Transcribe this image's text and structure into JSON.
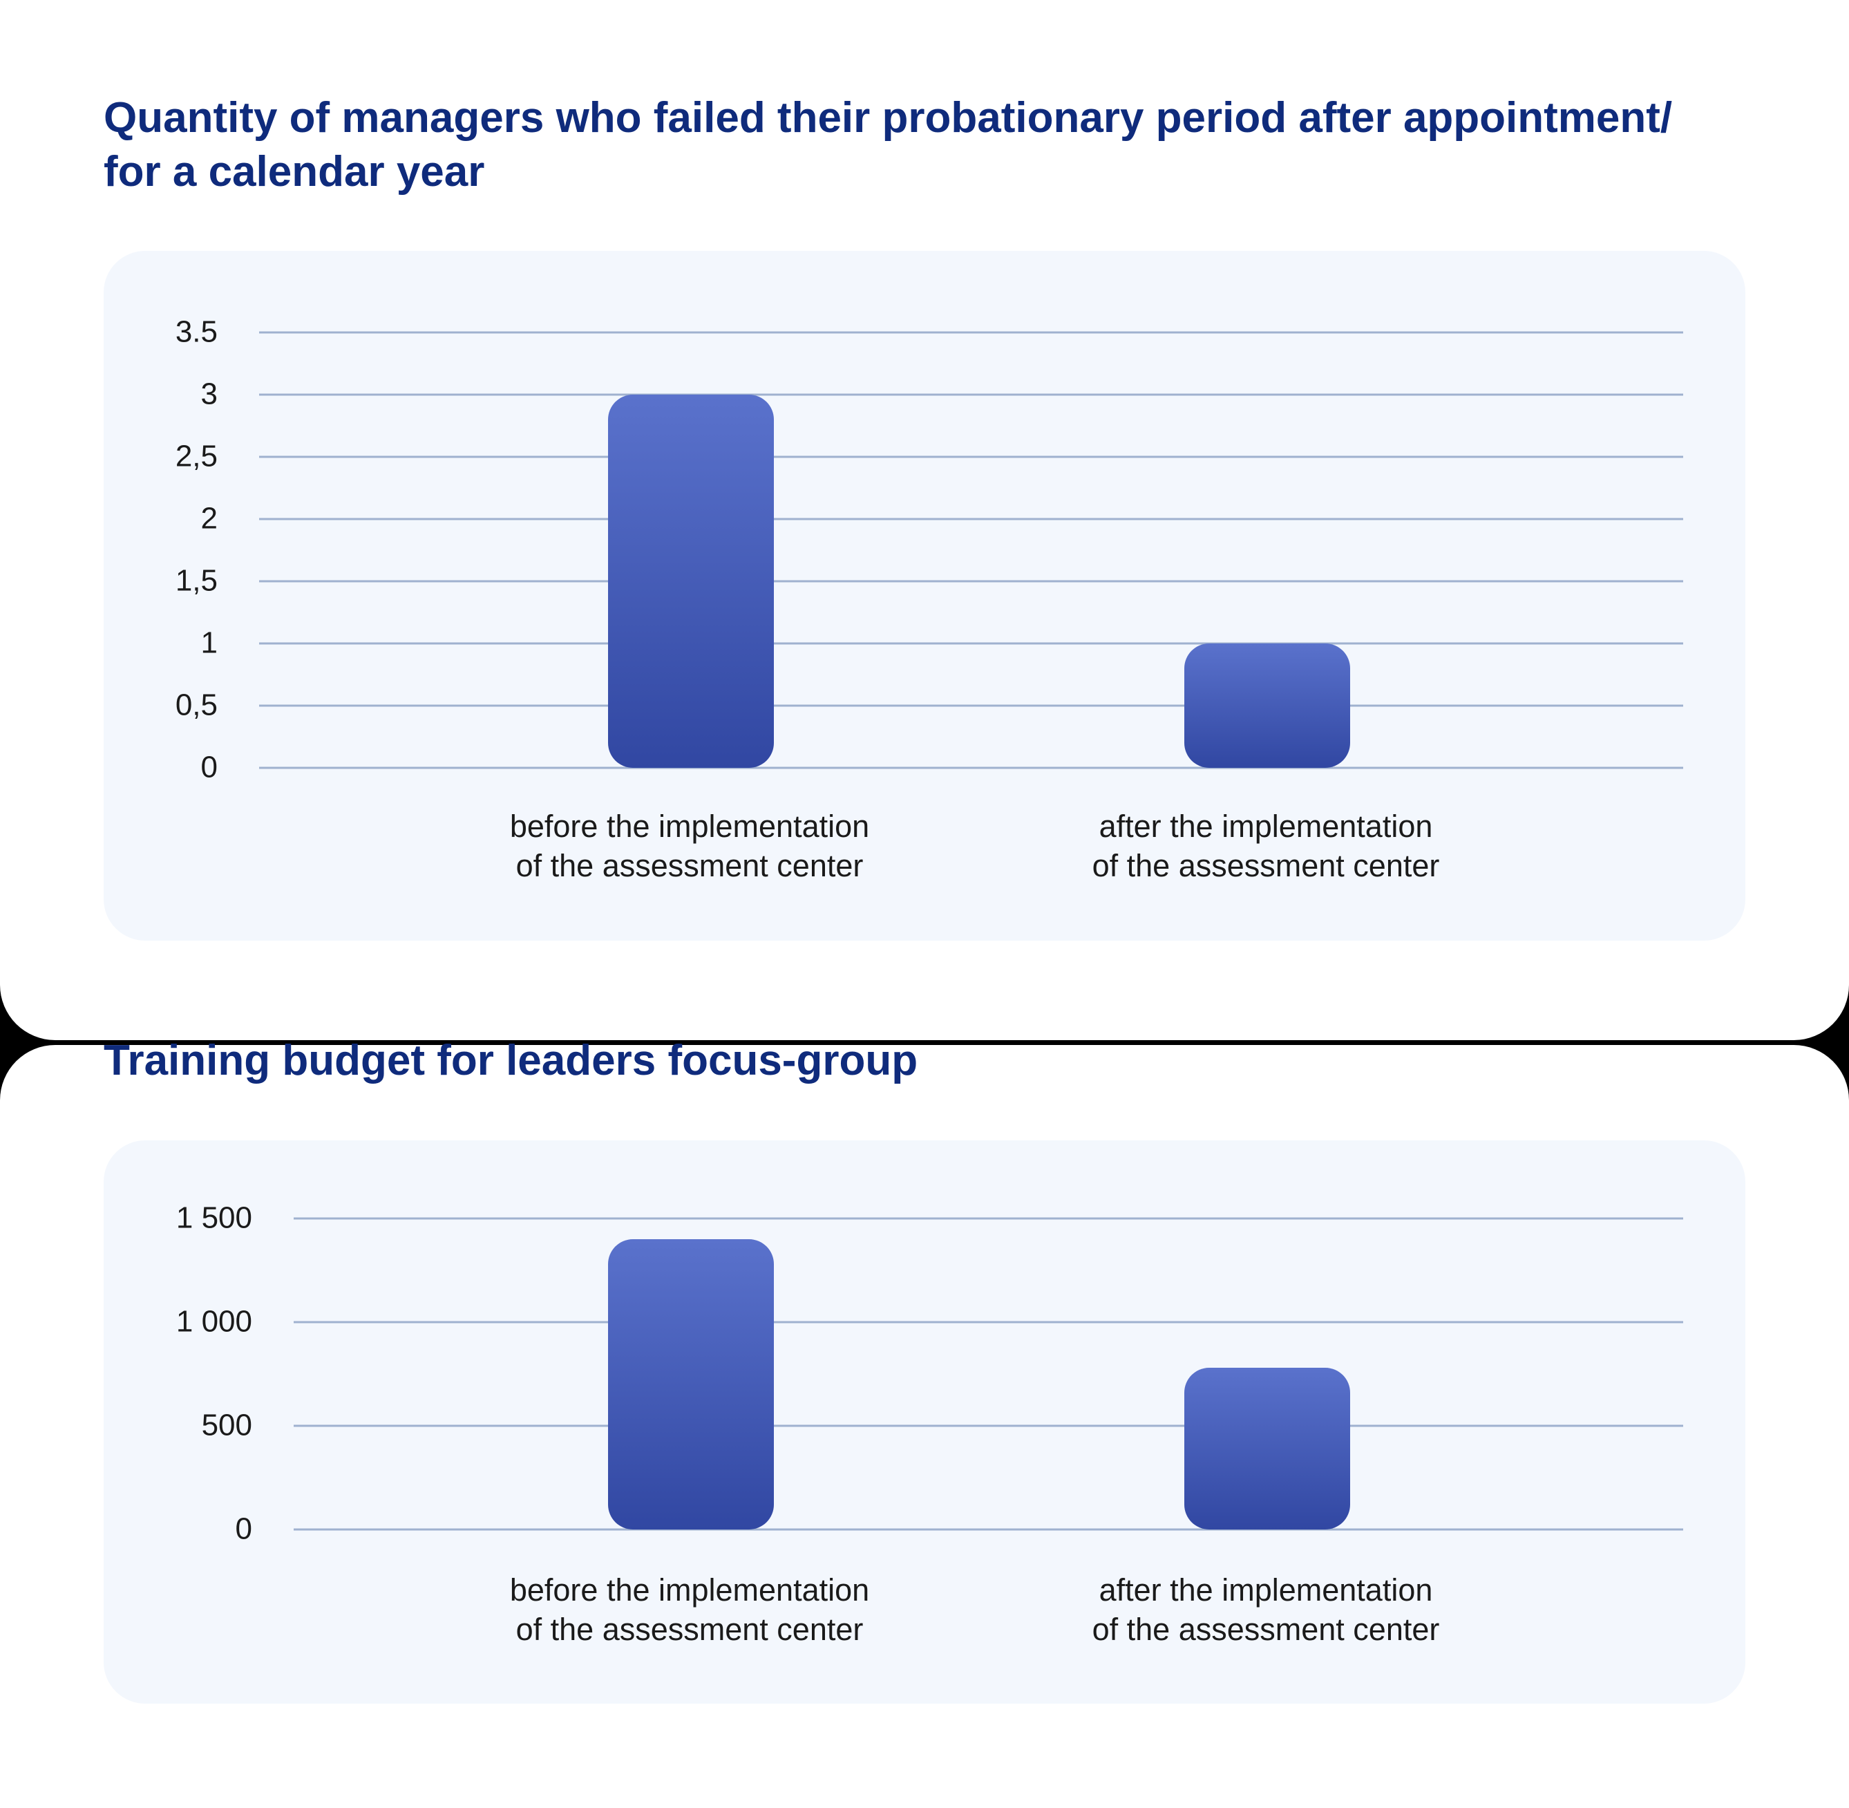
{
  "chart_data": [
    {
      "type": "bar",
      "title": "Quantity of managers who failed their probationary period after appointment/\nfor a calendar year",
      "categories": [
        [
          "before the implementation",
          "of the assessment center"
        ],
        [
          "after the implementation",
          "of the assessment center"
        ]
      ],
      "values": [
        3,
        1
      ],
      "ylim": [
        0,
        3.5
      ],
      "yticks": [
        0,
        0.5,
        1,
        1.5,
        2,
        2.5,
        3,
        3.5
      ],
      "ytick_labels": [
        "0",
        "0,5",
        "1",
        "1,5",
        "2",
        "2,5",
        "3",
        "3.5"
      ],
      "grid": true,
      "bar_color_top": "#5a72cc",
      "bar_color_bottom": "#3147a2",
      "gridline_color": "#9fb1cf"
    },
    {
      "type": "bar",
      "title": "Training budget for leaders focus-group",
      "categories": [
        [
          "before the implementation",
          "of the assessment center"
        ],
        [
          "after the implementation",
          "of the assessment center"
        ]
      ],
      "values": [
        1400,
        780
      ],
      "ylim": [
        0,
        1500
      ],
      "yticks": [
        0,
        500,
        1000,
        1500
      ],
      "ytick_labels": [
        "0",
        "500",
        "1 000",
        "1 500"
      ],
      "grid": true,
      "bar_color_top": "#5a72cc",
      "bar_color_bottom": "#3147a2",
      "gridline_color": "#9fb1cf"
    }
  ],
  "colors": {
    "heading": "#0f2b7c",
    "panel_background": "#f3f7fd",
    "card_background": "#ffffff",
    "page_background": "#000000"
  }
}
